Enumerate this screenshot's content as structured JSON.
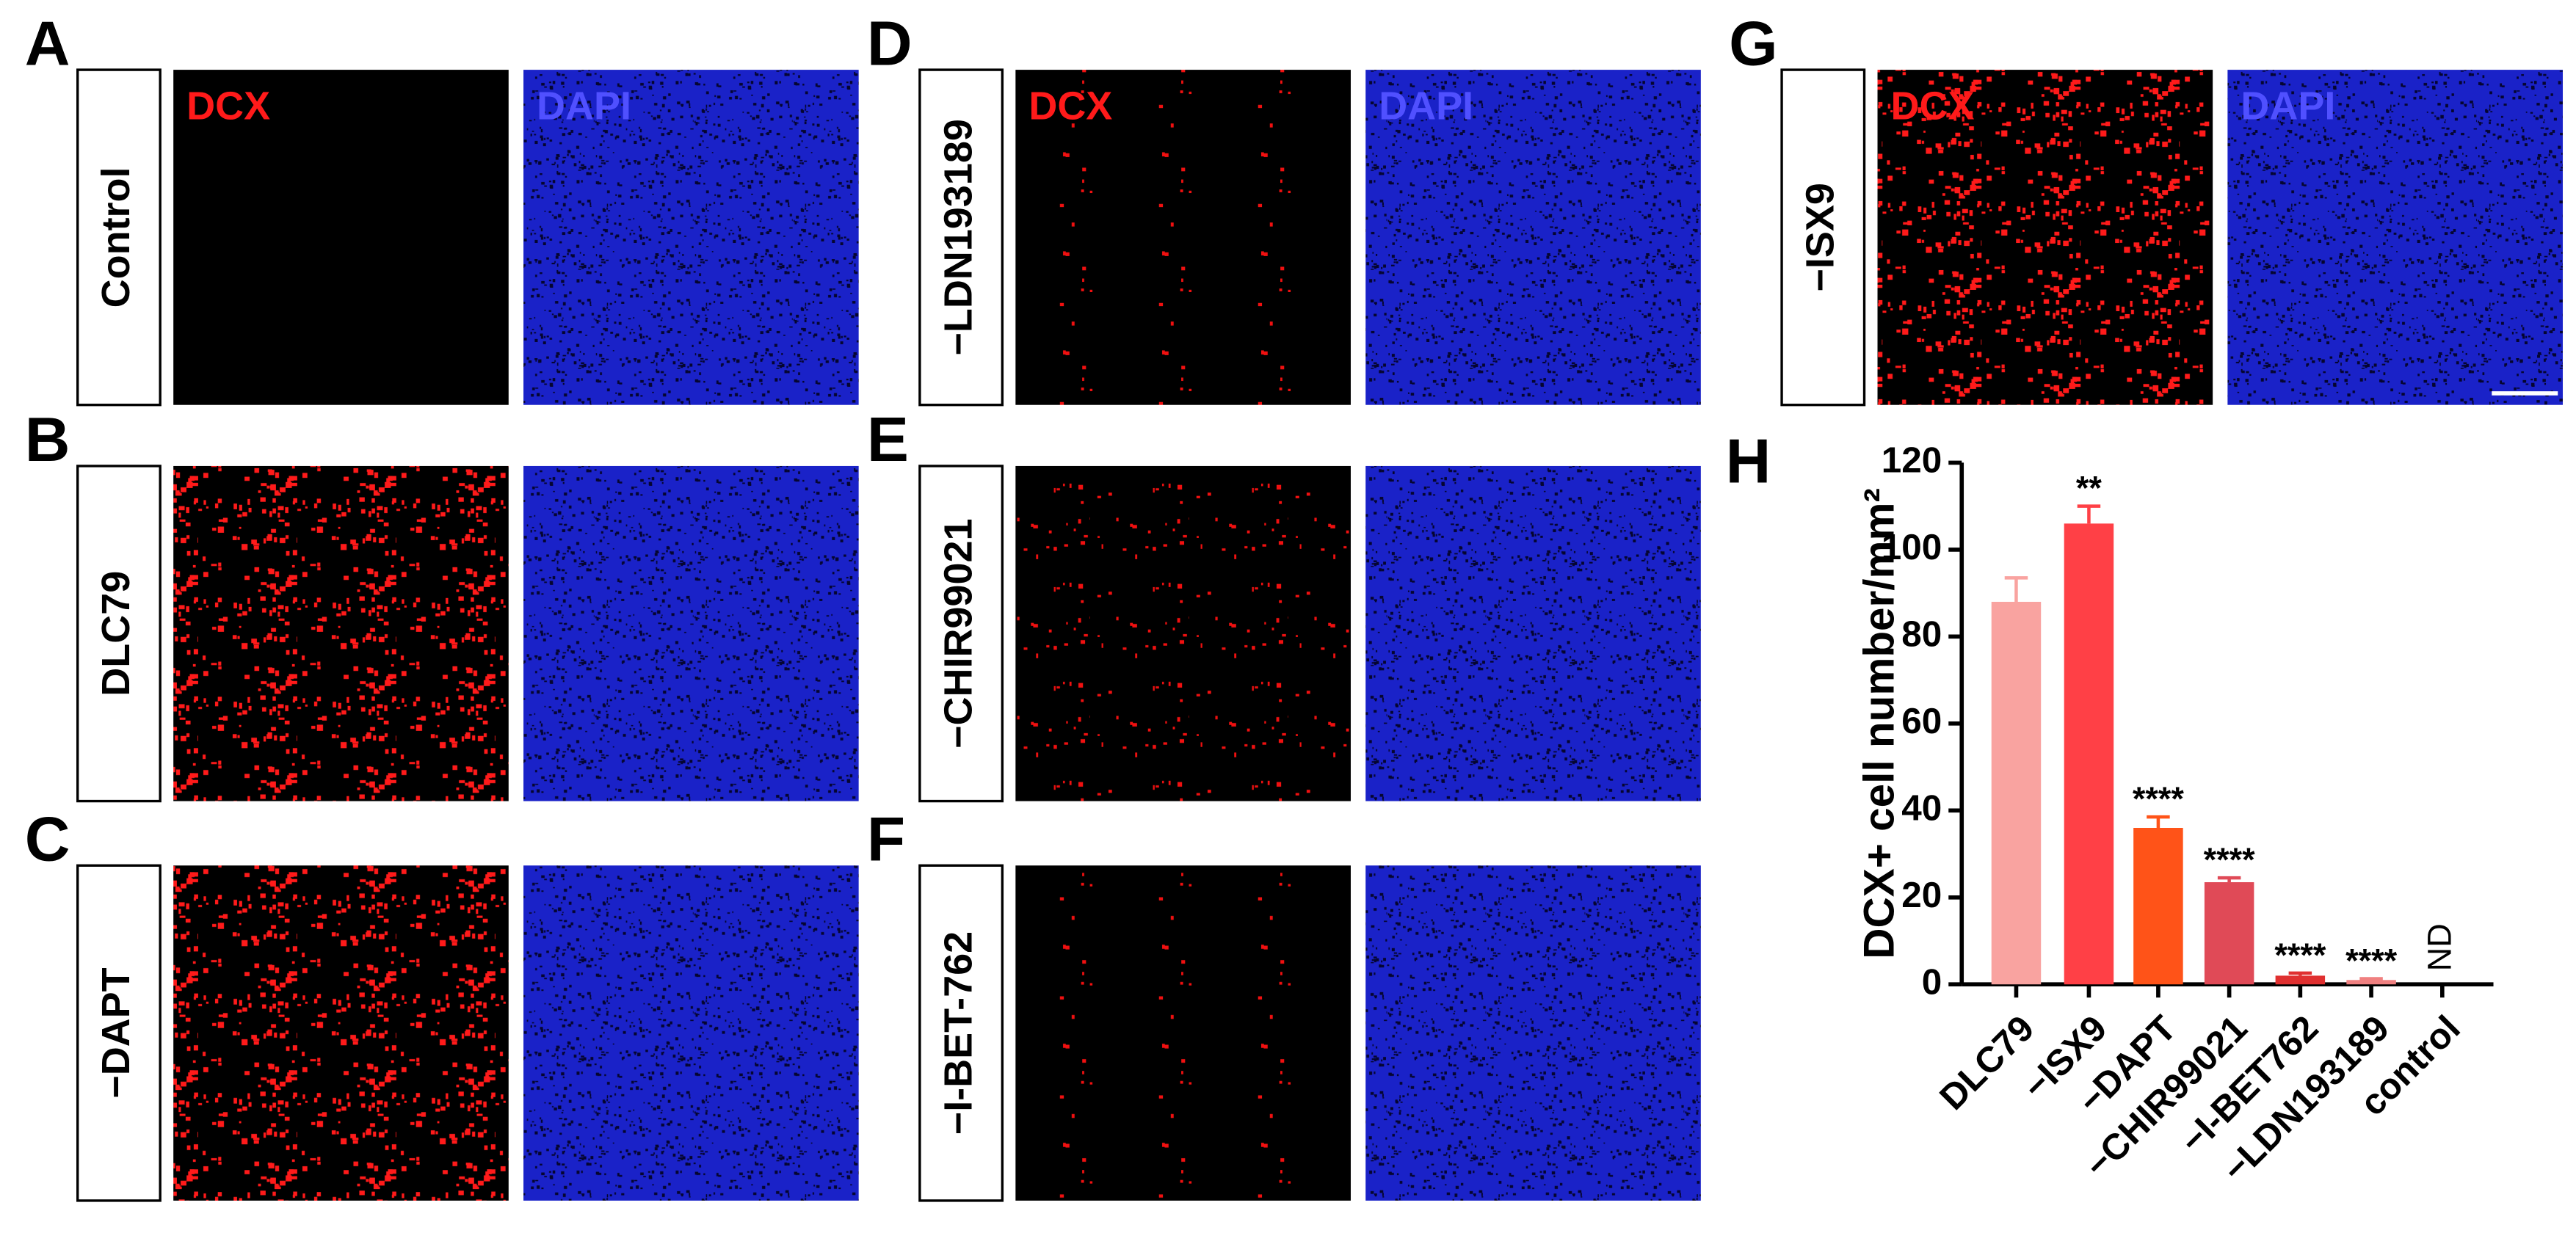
{
  "panels": [
    {
      "letter": "A",
      "condition": "Control",
      "channels": [
        "DCX",
        "DAPI"
      ]
    },
    {
      "letter": "B",
      "condition": "DLC79"
    },
    {
      "letter": "C",
      "condition": "−DAPT"
    },
    {
      "letter": "D",
      "condition": "−LDN193189",
      "channels": [
        "DCX",
        "DAPI"
      ]
    },
    {
      "letter": "E",
      "condition": "−CHIR99021"
    },
    {
      "letter": "F",
      "condition": "−I-BET-762"
    },
    {
      "letter": "G",
      "condition": "−ISX9",
      "channels": [
        "DCX",
        "DAPI"
      ]
    }
  ],
  "chart_data": {
    "type": "bar",
    "letter": "H",
    "ylabel": "DCX+ cell number/mm²",
    "categories": [
      "DLC79",
      "−ISX9",
      "−DAPT",
      "−CHIR99021",
      "−I-BET762",
      "−LDN193189",
      "control"
    ],
    "values": [
      88,
      106,
      36,
      23.5,
      2,
      1,
      0
    ],
    "errors": [
      5.5,
      4,
      2.5,
      1,
      0.6,
      0.3,
      0
    ],
    "colors": [
      "#f9a3a0",
      "#ff4046",
      "#ff5318",
      "#e04a57",
      "#e03030",
      "#f08080",
      "#000000"
    ],
    "significance": [
      null,
      "**",
      "****",
      "****",
      "****",
      "****",
      "ND"
    ],
    "ylim": [
      0,
      120
    ],
    "yticks": [
      0,
      20,
      40,
      60,
      80,
      100,
      120
    ]
  }
}
